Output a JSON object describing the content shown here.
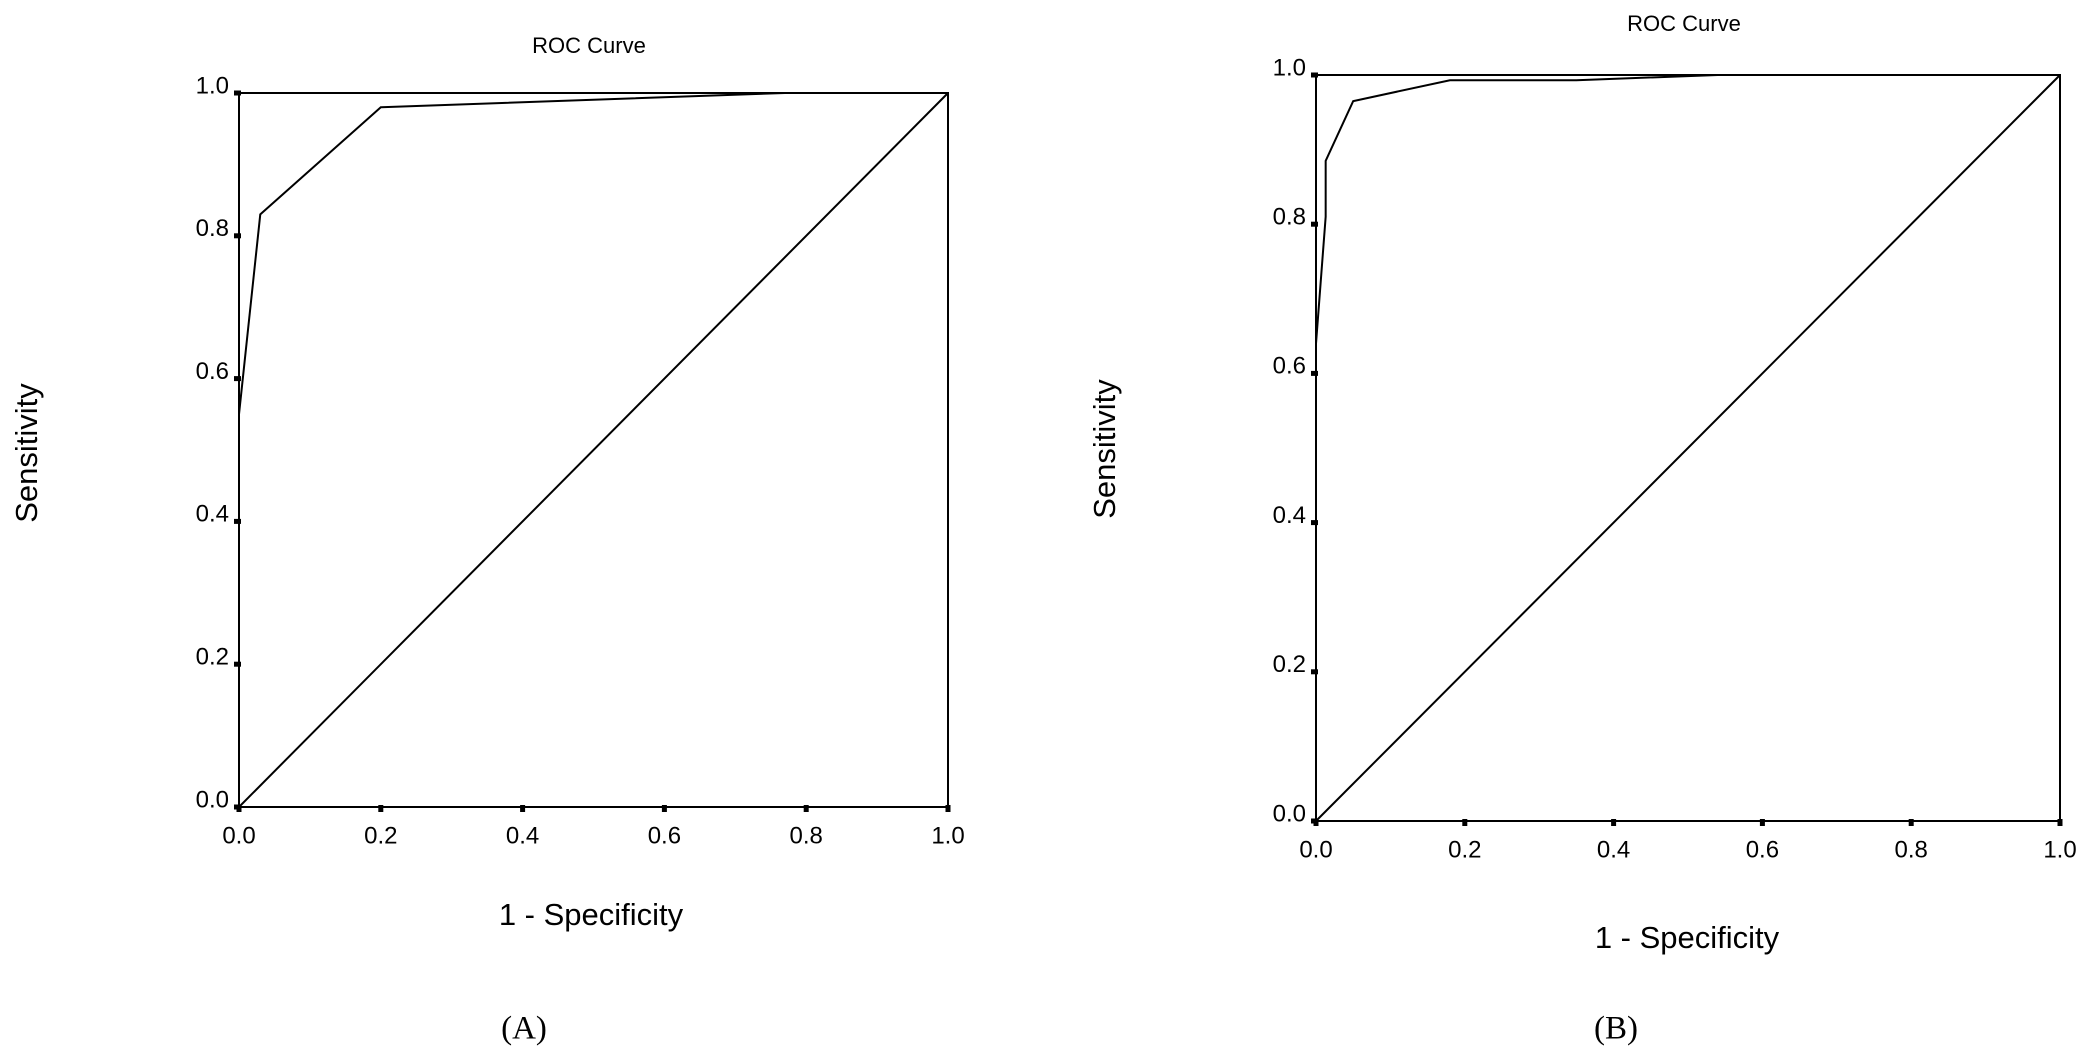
{
  "chart_data": [
    {
      "type": "line",
      "title": "ROC Curve",
      "x_label": "1 - Specificity",
      "y_label": "Sensitivity",
      "caption": "(A)",
      "xlim": [
        0,
        1
      ],
      "ylim": [
        0,
        1
      ],
      "xticks": [
        {
          "value": 0,
          "label": "0.0"
        },
        0.2,
        0.4,
        0.6,
        0.8,
        {
          "value": 1,
          "label": "1.0"
        }
      ],
      "yticks": [
        {
          "value": 0,
          "label": "0.0"
        },
        0.2,
        0.4,
        0.6,
        0.8,
        {
          "value": 1,
          "label": "1.0"
        }
      ],
      "series": [
        {
          "color": "#000000",
          "x": [
            0,
            0,
            0.03,
            0.2,
            0.77,
            1
          ],
          "values": [
            0,
            0.55,
            0.83,
            0.98,
            1,
            1
          ]
        },
        {
          "color": "#000000",
          "x": [
            0,
            1
          ],
          "values": [
            0,
            1
          ]
        }
      ]
    },
    {
      "type": "line",
      "title": "ROC Curve",
      "x_label": "1 - Specificity",
      "y_label": "Sensitivity",
      "caption": "(B)",
      "xlim": [
        0,
        1
      ],
      "ylim": [
        0,
        1
      ],
      "xticks": [
        {
          "value": 0,
          "label": "0.0"
        },
        0.2,
        0.4,
        0.6,
        0.8,
        {
          "value": 1,
          "label": "1.0"
        }
      ],
      "yticks": [
        {
          "value": 0,
          "label": "0.0"
        },
        0.2,
        0.4,
        0.6,
        0.8,
        {
          "value": 1,
          "label": "1.0"
        }
      ],
      "series": [
        {
          "color": "#000000",
          "x": [
            0,
            0,
            0.013,
            0.013,
            0.05,
            0.18,
            0.35,
            0.54,
            1
          ],
          "values": [
            0,
            0.64,
            0.81,
            0.885,
            0.965,
            0.993,
            0.993,
            1,
            1
          ]
        },
        {
          "color": "#000000",
          "x": [
            0,
            1
          ],
          "values": [
            0,
            1
          ]
        }
      ]
    }
  ]
}
